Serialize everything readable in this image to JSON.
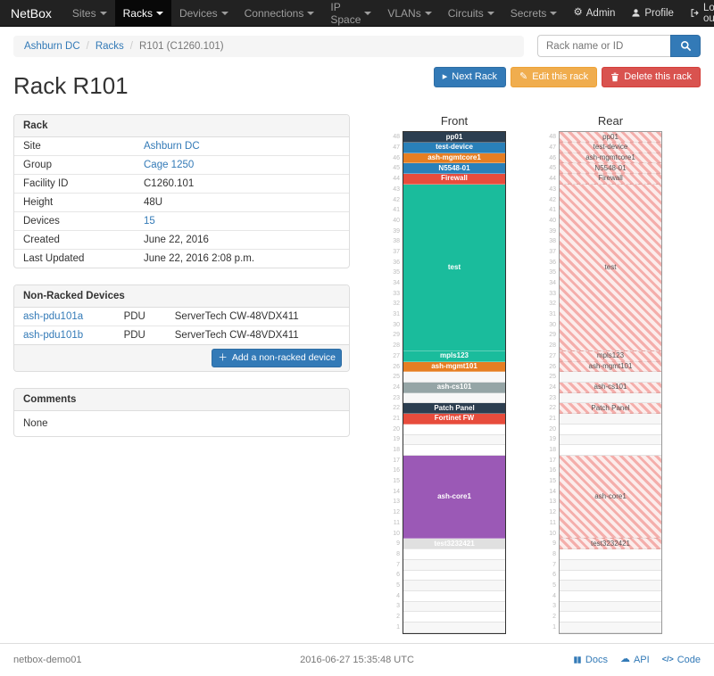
{
  "navbar": {
    "brand": "NetBox",
    "items": [
      {
        "label": "Sites",
        "active": false
      },
      {
        "label": "Racks",
        "active": true
      },
      {
        "label": "Devices",
        "active": false
      },
      {
        "label": "Connections",
        "active": false
      },
      {
        "label": "IP Space",
        "active": false
      },
      {
        "label": "VLANs",
        "active": false
      },
      {
        "label": "Circuits",
        "active": false
      },
      {
        "label": "Secrets",
        "active": false
      }
    ],
    "right": [
      {
        "label": "Admin",
        "icon": "gear-icon"
      },
      {
        "label": "Profile",
        "icon": "user-icon"
      },
      {
        "label": "Log out",
        "icon": "logout-icon"
      }
    ]
  },
  "breadcrumb": {
    "items": [
      "Ashburn DC",
      "Racks",
      "R101 (C1260.101)"
    ]
  },
  "search": {
    "placeholder": "Rack name or ID"
  },
  "actions": {
    "next_label": "Next Rack",
    "edit_label": "Edit this rack",
    "delete_label": "Delete this rack"
  },
  "page_title": "Rack R101",
  "theme": {
    "link": "#337ab7",
    "primary": "#337ab7",
    "warning": "#f0ad4e",
    "danger": "#d9534f"
  },
  "rack_panel": {
    "title": "Rack",
    "rows": [
      {
        "label": "Site",
        "value": "Ashburn DC",
        "link": true
      },
      {
        "label": "Group",
        "value": "Cage 1250",
        "link": true
      },
      {
        "label": "Facility ID",
        "value": "C1260.101",
        "link": false
      },
      {
        "label": "Height",
        "value": "48U",
        "link": false
      },
      {
        "label": "Devices",
        "value": "15",
        "link": true
      },
      {
        "label": "Created",
        "value": "June 22, 2016",
        "link": false
      },
      {
        "label": "Last Updated",
        "value": "June 22, 2016 2:08 p.m.",
        "link": false
      }
    ]
  },
  "nonracked_panel": {
    "title": "Non-Racked Devices",
    "rows": [
      {
        "name": "ash-pdu101a",
        "role": "PDU",
        "type": "ServerTech CW-48VDX411"
      },
      {
        "name": "ash-pdu101b",
        "role": "PDU",
        "type": "ServerTech CW-48VDX411"
      }
    ],
    "add_label": "Add a non-racked device"
  },
  "comments_panel": {
    "title": "Comments",
    "value": "None"
  },
  "rack_elevation": {
    "height": 48,
    "front_title": "Front",
    "rear_title": "Rear",
    "devices": [
      {
        "name": "pp01",
        "top_u": 48,
        "u_height": 1,
        "color": "#2c3e50",
        "full_depth": true
      },
      {
        "name": "test-device",
        "top_u": 47,
        "u_height": 1,
        "color": "#2980b9",
        "full_depth": true
      },
      {
        "name": "ash-mgmtcore1",
        "top_u": 46,
        "u_height": 1,
        "color": "#e67e22",
        "full_depth": true
      },
      {
        "name": "N5548-01",
        "top_u": 45,
        "u_height": 1,
        "color": "#2980b9",
        "full_depth": true
      },
      {
        "name": "Firewall",
        "top_u": 44,
        "u_height": 1,
        "color": "#e74c3c",
        "full_depth": true
      },
      {
        "name": "test",
        "top_u": 43,
        "u_height": 16,
        "color": "#1abc9c",
        "full_depth": true
      },
      {
        "name": "mpls123",
        "top_u": 27,
        "u_height": 1,
        "color": "#1abc9c",
        "full_depth": true
      },
      {
        "name": "ash-mgmt101",
        "top_u": 26,
        "u_height": 1,
        "color": "#e67e22",
        "full_depth": true
      },
      {
        "name": "ash-cs101",
        "top_u": 24,
        "u_height": 1,
        "color": "#95a5a6",
        "full_depth": true
      },
      {
        "name": "Patch Panel",
        "top_u": 22,
        "u_height": 1,
        "color": "#2c3e50",
        "full_depth": true
      },
      {
        "name": "Fortinet FW",
        "top_u": 21,
        "u_height": 1,
        "color": "#e74c3c",
        "full_depth": false
      },
      {
        "name": "ash-core1",
        "top_u": 17,
        "u_height": 8,
        "color": "#9b59b6",
        "full_depth": true
      },
      {
        "name": "test3232421",
        "top_u": 9,
        "u_height": 1,
        "color": "#e0e0e0",
        "text_color": "#ffffff",
        "full_depth": true
      }
    ]
  },
  "footer": {
    "hostname": "netbox-demo01",
    "timestamp": "2016-06-27 15:35:48 UTC",
    "links": [
      "Docs",
      "API",
      "Code"
    ]
  }
}
